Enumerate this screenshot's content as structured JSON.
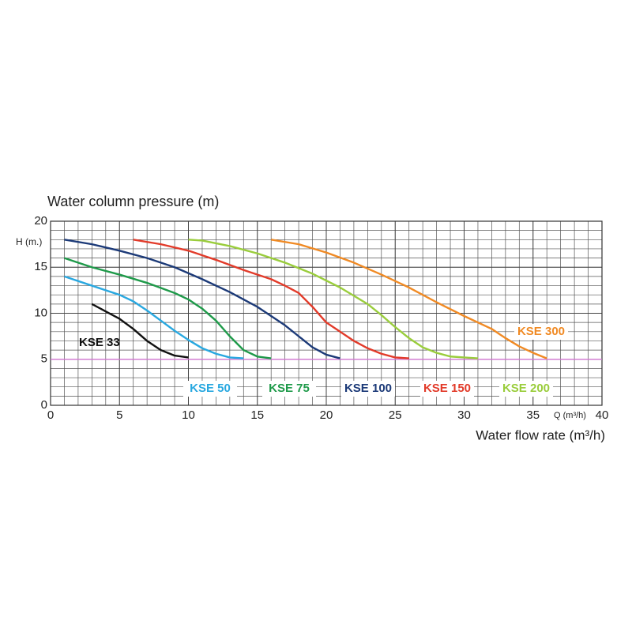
{
  "chart_data": {
    "type": "line",
    "title": "Water column pressure (m)",
    "x_label": "Water flow rate (m³/h)",
    "x_unit_label": "Q (m³/h)",
    "y_unit_label": "H (m.)",
    "xlim": [
      0,
      40
    ],
    "ylim": [
      0,
      20
    ],
    "xticks": [
      0,
      5,
      10,
      15,
      20,
      25,
      30,
      35,
      40
    ],
    "yticks": [
      0,
      5,
      10,
      15,
      20
    ],
    "grid": true,
    "hline": {
      "value": 5,
      "color": "#e07be0"
    },
    "series": [
      {
        "name": "KSE 33",
        "color": "#111111",
        "x": [
          3,
          4,
          5,
          6,
          7,
          8,
          9,
          10
        ],
        "values": [
          11,
          10.2,
          9.4,
          8.3,
          7,
          6,
          5.4,
          5.2
        ]
      },
      {
        "name": "KSE 50",
        "color": "#29a8e0",
        "x": [
          1,
          3,
          5,
          6,
          7,
          8,
          9,
          10,
          11,
          12,
          13,
          14
        ],
        "values": [
          14,
          13,
          12,
          11.3,
          10.3,
          9.2,
          8.1,
          7.1,
          6.2,
          5.6,
          5.2,
          5.1
        ]
      },
      {
        "name": "KSE 75",
        "color": "#1f9a4a",
        "x": [
          1,
          3,
          5,
          7,
          9,
          10,
          11,
          12,
          13,
          14,
          15,
          16
        ],
        "values": [
          16,
          15,
          14.2,
          13.3,
          12.2,
          11.5,
          10.5,
          9.2,
          7.5,
          6,
          5.3,
          5.1
        ]
      },
      {
        "name": "KSE 100",
        "color": "#1c3a78",
        "x": [
          1,
          3,
          5,
          7,
          9,
          11,
          13,
          15,
          17,
          18,
          19,
          20,
          21
        ],
        "values": [
          18,
          17.5,
          16.8,
          16,
          15,
          13.7,
          12.3,
          10.7,
          8.7,
          7.5,
          6.3,
          5.5,
          5.1
        ]
      },
      {
        "name": "KSE 150",
        "color": "#e23b2a",
        "x": [
          6,
          8,
          10,
          12,
          14,
          16,
          17,
          18,
          19,
          20,
          21,
          22,
          23,
          24,
          25,
          26
        ],
        "values": [
          18,
          17.5,
          16.8,
          15.8,
          14.7,
          13.7,
          13,
          12.2,
          10.7,
          9,
          8,
          7,
          6.2,
          5.6,
          5.2,
          5.1
        ]
      },
      {
        "name": "KSE 200",
        "color": "#9acd3c",
        "x": [
          10,
          11,
          13,
          15,
          17,
          19,
          21,
          23,
          24,
          25,
          26,
          27,
          28,
          29,
          30,
          31
        ],
        "values": [
          18,
          17.9,
          17.3,
          16.5,
          15.5,
          14.3,
          12.8,
          11,
          9.8,
          8.5,
          7.3,
          6.3,
          5.7,
          5.3,
          5.2,
          5.1
        ]
      },
      {
        "name": "KSE 300",
        "color": "#f08a24",
        "x": [
          16,
          18,
          20,
          22,
          24,
          26,
          28,
          30,
          32,
          33,
          34,
          35,
          36
        ],
        "values": [
          18,
          17.5,
          16.6,
          15.5,
          14.2,
          12.8,
          11.2,
          9.7,
          8.3,
          7.3,
          6.4,
          5.7,
          5.1
        ]
      }
    ]
  }
}
